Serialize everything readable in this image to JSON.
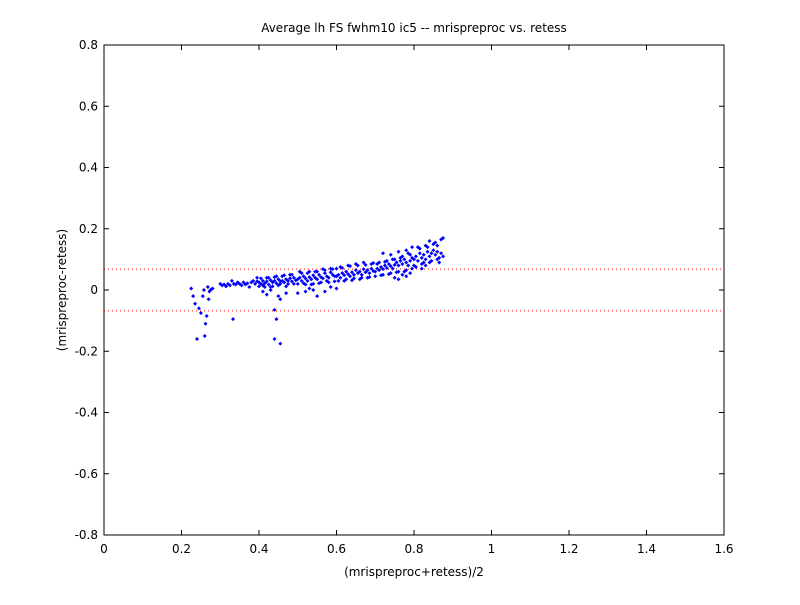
{
  "chart_data": {
    "type": "scatter",
    "title": "Average lh FS fwhm10 ic5 -- mrispreproc vs. retess",
    "xlabel": "(mrispreproc+retess)/2",
    "ylabel": "(mrispreproc-retess)",
    "xlim": [
      0,
      1.6
    ],
    "ylim": [
      -0.8,
      0.8
    ],
    "x_ticks": [
      0,
      0.2,
      0.4,
      0.6,
      0.8,
      1,
      1.2,
      1.4,
      1.6
    ],
    "y_ticks": [
      -0.8,
      -0.6,
      -0.4,
      -0.2,
      0,
      0.2,
      0.4,
      0.6,
      0.8
    ],
    "x_tick_labels": [
      "0",
      "0.2",
      "0.4",
      "0.6",
      "0.8",
      "1",
      "1.2",
      "1.4",
      "1.6"
    ],
    "y_tick_labels": [
      "-0.8",
      "-0.6",
      "-0.4",
      "-0.2",
      "0",
      "0.2",
      "0.4",
      "0.6",
      "0.8"
    ],
    "grid": false,
    "marker_color": "#0000ff",
    "reference_line_color": "#ff0000",
    "reference_lines": [
      0.068,
      -0.068
    ],
    "points": [
      [
        0.225,
        0.005
      ],
      [
        0.23,
        -0.02
      ],
      [
        0.235,
        -0.045
      ],
      [
        0.24,
        -0.16
      ],
      [
        0.245,
        -0.06
      ],
      [
        0.25,
        -0.075
      ],
      [
        0.255,
        -0.02
      ],
      [
        0.26,
        -0.15
      ],
      [
        0.262,
        -0.11
      ],
      [
        0.265,
        -0.085
      ],
      [
        0.258,
        0.0
      ],
      [
        0.268,
        0.01
      ],
      [
        0.272,
        -0.005
      ],
      [
        0.275,
        0.0
      ],
      [
        0.28,
        0.005
      ],
      [
        0.27,
        -0.03
      ],
      [
        0.3,
        0.02
      ],
      [
        0.305,
        0.015
      ],
      [
        0.31,
        0.018
      ],
      [
        0.315,
        0.012
      ],
      [
        0.32,
        0.02
      ],
      [
        0.325,
        0.015
      ],
      [
        0.33,
        0.03
      ],
      [
        0.333,
        -0.095
      ],
      [
        0.335,
        0.02
      ],
      [
        0.34,
        0.018
      ],
      [
        0.345,
        0.025
      ],
      [
        0.35,
        0.02
      ],
      [
        0.355,
        0.015
      ],
      [
        0.36,
        0.025
      ],
      [
        0.365,
        0.018
      ],
      [
        0.37,
        0.022
      ],
      [
        0.375,
        0.01
      ],
      [
        0.38,
        0.025
      ],
      [
        0.385,
        0.03
      ],
      [
        0.39,
        0.02
      ],
      [
        0.395,
        0.028
      ],
      [
        0.4,
        0.025
      ],
      [
        0.405,
        0.02
      ],
      [
        0.41,
        0.03
      ],
      [
        0.415,
        0.022
      ],
      [
        0.42,
        0.028
      ],
      [
        0.425,
        0.018
      ],
      [
        0.43,
        0.032
      ],
      [
        0.435,
        0.025
      ],
      [
        0.44,
        0.03
      ],
      [
        0.445,
        0.022
      ],
      [
        0.45,
        0.035
      ],
      [
        0.455,
        0.028
      ],
      [
        0.46,
        0.03
      ],
      [
        0.465,
        0.025
      ],
      [
        0.47,
        0.035
      ],
      [
        0.475,
        0.03
      ],
      [
        0.48,
        0.038
      ],
      [
        0.485,
        0.028
      ],
      [
        0.49,
        0.04
      ],
      [
        0.495,
        0.032
      ],
      [
        0.4,
        0.012
      ],
      [
        0.41,
        0.015
      ],
      [
        0.42,
        0.04
      ],
      [
        0.43,
        0.01
      ],
      [
        0.44,
        0.042
      ],
      [
        0.45,
        0.015
      ],
      [
        0.46,
        0.045
      ],
      [
        0.47,
        0.012
      ],
      [
        0.48,
        0.05
      ],
      [
        0.49,
        0.02
      ],
      [
        0.395,
        0.04
      ],
      [
        0.405,
        0.038
      ],
      [
        0.415,
        0.01
      ],
      [
        0.425,
        0.04
      ],
      [
        0.435,
        0.012
      ],
      [
        0.445,
        0.045
      ],
      [
        0.455,
        0.02
      ],
      [
        0.465,
        0.048
      ],
      [
        0.475,
        0.02
      ],
      [
        0.485,
        0.05
      ],
      [
        0.44,
        -0.065
      ],
      [
        0.445,
        -0.095
      ],
      [
        0.455,
        -0.03
      ],
      [
        0.41,
        -0.005
      ],
      [
        0.43,
        0.0
      ],
      [
        0.42,
        -0.015
      ],
      [
        0.44,
        -0.16
      ],
      [
        0.455,
        -0.175
      ],
      [
        0.47,
        -0.01
      ],
      [
        0.45,
        -0.02
      ],
      [
        0.5,
        0.035
      ],
      [
        0.505,
        0.04
      ],
      [
        0.51,
        0.03
      ],
      [
        0.515,
        0.045
      ],
      [
        0.52,
        0.038
      ],
      [
        0.525,
        0.03
      ],
      [
        0.53,
        0.042
      ],
      [
        0.535,
        0.035
      ],
      [
        0.54,
        0.048
      ],
      [
        0.545,
        0.04
      ],
      [
        0.55,
        0.035
      ],
      [
        0.555,
        0.05
      ],
      [
        0.56,
        0.042
      ],
      [
        0.565,
        0.038
      ],
      [
        0.57,
        0.055
      ],
      [
        0.575,
        0.045
      ],
      [
        0.58,
        0.04
      ],
      [
        0.585,
        0.058
      ],
      [
        0.59,
        0.05
      ],
      [
        0.595,
        0.045
      ],
      [
        0.5,
        0.02
      ],
      [
        0.51,
        0.055
      ],
      [
        0.52,
        0.018
      ],
      [
        0.53,
        0.06
      ],
      [
        0.54,
        0.02
      ],
      [
        0.55,
        0.06
      ],
      [
        0.56,
        0.025
      ],
      [
        0.57,
        0.065
      ],
      [
        0.58,
        0.025
      ],
      [
        0.59,
        0.068
      ],
      [
        0.505,
        0.06
      ],
      [
        0.515,
        0.022
      ],
      [
        0.525,
        0.055
      ],
      [
        0.535,
        0.018
      ],
      [
        0.545,
        0.06
      ],
      [
        0.555,
        0.022
      ],
      [
        0.565,
        0.068
      ],
      [
        0.575,
        0.03
      ],
      [
        0.585,
        0.07
      ],
      [
        0.595,
        0.028
      ],
      [
        0.5,
        -0.01
      ],
      [
        0.52,
        -0.005
      ],
      [
        0.54,
        0.0
      ],
      [
        0.55,
        -0.02
      ],
      [
        0.57,
        -0.005
      ],
      [
        0.585,
        0.01
      ],
      [
        0.6,
        0.005
      ],
      [
        0.53,
        0.005
      ],
      [
        0.6,
        0.045
      ],
      [
        0.605,
        0.05
      ],
      [
        0.61,
        0.04
      ],
      [
        0.615,
        0.055
      ],
      [
        0.62,
        0.048
      ],
      [
        0.625,
        0.06
      ],
      [
        0.63,
        0.052
      ],
      [
        0.635,
        0.045
      ],
      [
        0.64,
        0.058
      ],
      [
        0.645,
        0.05
      ],
      [
        0.65,
        0.065
      ],
      [
        0.655,
        0.055
      ],
      [
        0.66,
        0.06
      ],
      [
        0.665,
        0.05
      ],
      [
        0.67,
        0.068
      ],
      [
        0.675,
        0.058
      ],
      [
        0.68,
        0.065
      ],
      [
        0.685,
        0.055
      ],
      [
        0.69,
        0.07
      ],
      [
        0.695,
        0.062
      ],
      [
        0.6,
        0.07
      ],
      [
        0.61,
        0.075
      ],
      [
        0.62,
        0.03
      ],
      [
        0.63,
        0.08
      ],
      [
        0.64,
        0.032
      ],
      [
        0.65,
        0.085
      ],
      [
        0.66,
        0.035
      ],
      [
        0.67,
        0.09
      ],
      [
        0.68,
        0.04
      ],
      [
        0.69,
        0.085
      ],
      [
        0.605,
        0.03
      ],
      [
        0.615,
        0.072
      ],
      [
        0.625,
        0.035
      ],
      [
        0.635,
        0.078
      ],
      [
        0.645,
        0.038
      ],
      [
        0.655,
        0.08
      ],
      [
        0.665,
        0.04
      ],
      [
        0.675,
        0.082
      ],
      [
        0.685,
        0.042
      ],
      [
        0.695,
        0.088
      ],
      [
        0.7,
        0.06
      ],
      [
        0.705,
        0.07
      ],
      [
        0.71,
        0.065
      ],
      [
        0.715,
        0.075
      ],
      [
        0.72,
        0.068
      ],
      [
        0.725,
        0.08
      ],
      [
        0.73,
        0.072
      ],
      [
        0.735,
        0.085
      ],
      [
        0.74,
        0.078
      ],
      [
        0.745,
        0.07
      ],
      [
        0.75,
        0.082
      ],
      [
        0.755,
        0.09
      ],
      [
        0.76,
        0.08
      ],
      [
        0.765,
        0.095
      ],
      [
        0.77,
        0.085
      ],
      [
        0.775,
        0.1
      ],
      [
        0.78,
        0.09
      ],
      [
        0.785,
        0.08
      ],
      [
        0.79,
        0.095
      ],
      [
        0.795,
        0.105
      ],
      [
        0.7,
        0.045
      ],
      [
        0.71,
        0.09
      ],
      [
        0.72,
        0.05
      ],
      [
        0.73,
        0.095
      ],
      [
        0.74,
        0.055
      ],
      [
        0.75,
        0.1
      ],
      [
        0.76,
        0.06
      ],
      [
        0.77,
        0.11
      ],
      [
        0.78,
        0.065
      ],
      [
        0.79,
        0.115
      ],
      [
        0.705,
        0.085
      ],
      [
        0.715,
        0.048
      ],
      [
        0.725,
        0.092
      ],
      [
        0.735,
        0.052
      ],
      [
        0.745,
        0.1
      ],
      [
        0.755,
        0.058
      ],
      [
        0.765,
        0.105
      ],
      [
        0.775,
        0.06
      ],
      [
        0.785,
        0.12
      ],
      [
        0.795,
        0.07
      ],
      [
        0.72,
        0.12
      ],
      [
        0.74,
        0.115
      ],
      [
        0.76,
        0.125
      ],
      [
        0.78,
        0.13
      ],
      [
        0.795,
        0.14
      ],
      [
        0.75,
        0.04
      ],
      [
        0.77,
        0.05
      ],
      [
        0.79,
        0.055
      ],
      [
        0.76,
        0.035
      ],
      [
        0.78,
        0.045
      ],
      [
        0.8,
        0.1
      ],
      [
        0.805,
        0.11
      ],
      [
        0.81,
        0.095
      ],
      [
        0.815,
        0.12
      ],
      [
        0.82,
        0.105
      ],
      [
        0.825,
        0.115
      ],
      [
        0.83,
        0.1
      ],
      [
        0.835,
        0.125
      ],
      [
        0.84,
        0.11
      ],
      [
        0.845,
        0.12
      ],
      [
        0.85,
        0.13
      ],
      [
        0.855,
        0.115
      ],
      [
        0.86,
        0.125
      ],
      [
        0.865,
        0.105
      ],
      [
        0.87,
        0.12
      ],
      [
        0.875,
        0.11
      ],
      [
        0.8,
        0.08
      ],
      [
        0.81,
        0.14
      ],
      [
        0.82,
        0.085
      ],
      [
        0.83,
        0.145
      ],
      [
        0.84,
        0.09
      ],
      [
        0.85,
        0.15
      ],
      [
        0.86,
        0.1
      ],
      [
        0.87,
        0.165
      ],
      [
        0.875,
        0.17
      ],
      [
        0.805,
        0.075
      ],
      [
        0.815,
        0.135
      ],
      [
        0.825,
        0.09
      ],
      [
        0.835,
        0.14
      ],
      [
        0.845,
        0.095
      ],
      [
        0.855,
        0.155
      ],
      [
        0.865,
        0.09
      ],
      [
        0.84,
        0.16
      ],
      [
        0.86,
        0.145
      ],
      [
        0.82,
        0.07
      ],
      [
        0.83,
        0.08
      ]
    ]
  }
}
